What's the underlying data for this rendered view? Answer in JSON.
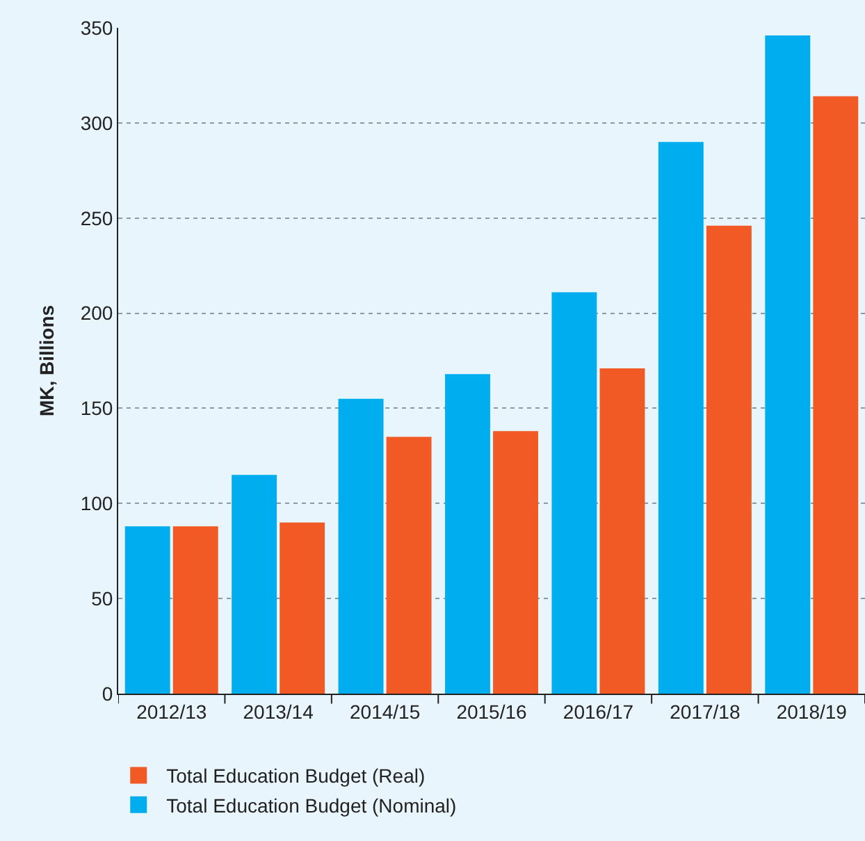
{
  "chart_data": {
    "type": "bar",
    "ylabel": "MK, Billions",
    "categories": [
      "2012/13",
      "2013/14",
      "2014/15",
      "2015/16",
      "2016/17",
      "2017/18",
      "2018/19"
    ],
    "series": [
      {
        "name": "Total Education Budget (Nominal)",
        "color": "#00aeef",
        "values": [
          88,
          115,
          155,
          168,
          211,
          290,
          346
        ]
      },
      {
        "name": "Total Education Budget (Real)",
        "color": "#f15a24",
        "values": [
          88,
          90,
          135,
          138,
          171,
          246,
          314
        ]
      }
    ],
    "ylim": [
      0,
      350
    ],
    "yticks": [
      0,
      50,
      100,
      150,
      200,
      250,
      300,
      350
    ],
    "grid": "y",
    "legend": "bottom left"
  }
}
